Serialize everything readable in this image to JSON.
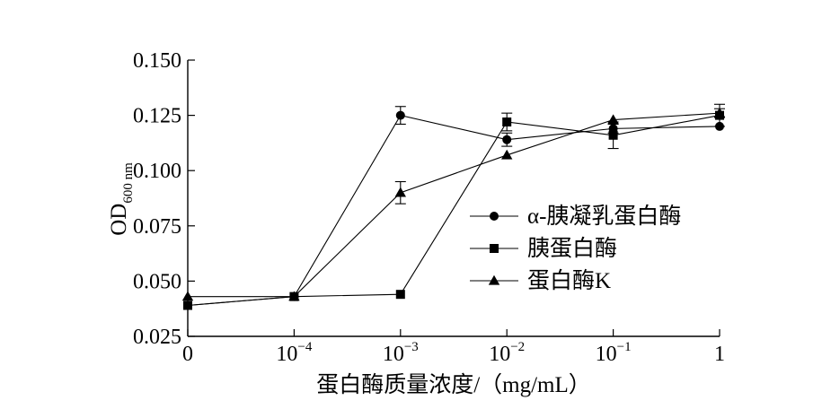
{
  "chart_data": {
    "type": "line",
    "ylabel_main": "OD",
    "ylabel_sub": "600 nm",
    "xlabel": "蛋白酶质量浓度/（mg/mL）",
    "x_tick_labels": [
      {
        "base": "0",
        "exp": ""
      },
      {
        "base": "10",
        "exp": "−4"
      },
      {
        "base": "10",
        "exp": "−3"
      },
      {
        "base": "10",
        "exp": "−2"
      },
      {
        "base": "10",
        "exp": "−1"
      },
      {
        "base": "1",
        "exp": ""
      }
    ],
    "categories": [
      "0",
      "1e-4",
      "1e-3",
      "1e-2",
      "1e-1",
      "1"
    ],
    "y_ticks": [
      "0.025",
      "0.050",
      "0.075",
      "0.100",
      "0.125",
      "0.150"
    ],
    "ylim": [
      0.025,
      0.15
    ],
    "grid": false,
    "legend_position": "right-center",
    "series": [
      {
        "name": "α-胰凝乳蛋白酶",
        "marker": "circle",
        "values": [
          0.039,
          0.043,
          0.125,
          0.114,
          0.119,
          0.12
        ],
        "errors": [
          0.001,
          0.001,
          0.004,
          0.003,
          0.002,
          0.001
        ]
      },
      {
        "name": "胰蛋白酶",
        "marker": "square",
        "values": [
          0.039,
          0.043,
          0.044,
          0.122,
          0.116,
          0.125
        ],
        "errors": [
          0.001,
          0.001,
          0.001,
          0.004,
          0.006,
          0.005
        ]
      },
      {
        "name": "蛋白酶K",
        "marker": "triangle",
        "values": [
          0.043,
          0.043,
          0.09,
          0.107,
          0.123,
          0.126
        ],
        "errors": [
          0.001,
          0.001,
          0.005,
          0.001,
          0.001,
          0.002
        ]
      }
    ]
  }
}
